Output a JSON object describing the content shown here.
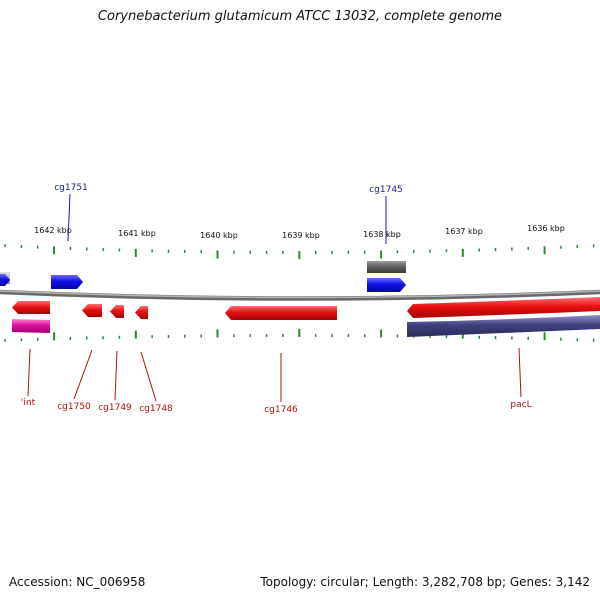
{
  "title": "Corynebacterium glutamicum ATCC 13032, complete genome",
  "footer": {
    "accession": "Accession: NC_006958",
    "summary": "Topology: circular; Length: 3,282,708 bp; Genes: 3,142"
  },
  "colors": {
    "forward_gene": "#1010e8",
    "reverse_gene": "#e81010",
    "other_gene": "#606060",
    "pseudo_gene": "#e010a0",
    "large_gene": "#404080",
    "backbone": "#888888",
    "ticks": "#2a8a2a",
    "label_forward": "#1a1a9a",
    "label_reverse": "#b01010"
  },
  "ruler": {
    "labels": [
      "1642 kbp",
      "1641 kbp",
      "1640 kbp",
      "1639 kbp",
      "1638 kbp",
      "1637 kbp",
      "1636 kbp"
    ]
  },
  "labels_top": [
    "cg1751",
    "cg1745"
  ],
  "labels_bottom": [
    "'int",
    "cg1750",
    "cg1749",
    "cg1748",
    "cg1746",
    "pacL"
  ]
}
